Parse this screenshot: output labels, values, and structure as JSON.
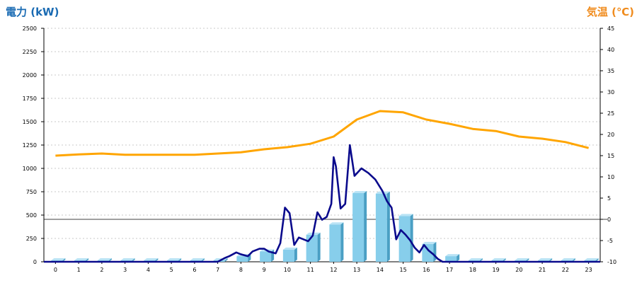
{
  "header": {
    "left_title": "電力 (kW)",
    "right_title": "気温 (℃)"
  },
  "colors": {
    "power_title": "#1a6bb3",
    "temp_title": "#f08c1e",
    "bars": "#87ceeb",
    "power_line": "#0a0a8c",
    "temp_line": "#ffa500"
  },
  "chart_data": {
    "type": "bar",
    "grid": true,
    "hours": [
      "0",
      "1",
      "2",
      "3",
      "4",
      "5",
      "6",
      "7",
      "8",
      "9",
      "10",
      "11",
      "12",
      "13",
      "14",
      "15",
      "16",
      "17",
      "18",
      "19",
      "20",
      "21",
      "22",
      "23"
    ],
    "left_axis": {
      "label": "電力 (kW)",
      "range": [
        0,
        2500
      ],
      "ticks": [
        "0",
        "250",
        "500",
        "750",
        "1000",
        "1250",
        "1500",
        "1750",
        "2000",
        "2250",
        "2500"
      ]
    },
    "right_axis": {
      "label": "気温 (℃)",
      "range": [
        -10,
        45
      ],
      "ticks": [
        "-10",
        "-5",
        "0",
        "5",
        "10",
        "15",
        "20",
        "25",
        "30",
        "35",
        "40",
        "45"
      ]
    },
    "series": [
      {
        "kind": "bar",
        "axis": "left",
        "values": [
          15,
          15,
          15,
          15,
          15,
          15,
          15,
          15,
          60,
          110,
          130,
          290,
          400,
          735,
          730,
          490,
          190,
          60,
          15,
          15,
          15,
          15,
          15,
          15
        ]
      },
      {
        "kind": "line",
        "axis": "left",
        "x": [
          0,
          7.5,
          7.8,
          8.0,
          8.3,
          8.5,
          8.8,
          9.0,
          9.3,
          9.5,
          9.7,
          10.0,
          10.2,
          10.4,
          10.6,
          10.8,
          11.0,
          11.2,
          11.4,
          11.6,
          11.8,
          12.0,
          12.2,
          12.4,
          12.5,
          12.6,
          12.8,
          13.0,
          13.2,
          13.4,
          13.7,
          14.0,
          14.3,
          14.6,
          14.8,
          15.0,
          15.2,
          15.4,
          15.6,
          15.8,
          16.0,
          16.2,
          16.4,
          16.6,
          16.8,
          17.0,
          17.2,
          24.0
        ],
        "values": [
          0,
          0,
          40,
          60,
          100,
          80,
          60,
          110,
          140,
          140,
          110,
          90,
          200,
          580,
          520,
          180,
          260,
          240,
          220,
          280,
          530,
          450,
          480,
          620,
          1120,
          1020,
          570,
          620,
          1250,
          920,
          1000,
          950,
          880,
          760,
          650,
          580,
          240,
          340,
          290,
          230,
          150,
          100,
          180,
          120,
          80,
          30,
          0,
          0
        ]
      },
      {
        "kind": "line",
        "axis": "right",
        "values": [
          15,
          15.3,
          15.5,
          15.2,
          15.2,
          15.2,
          15.2,
          15.5,
          15.8,
          16.5,
          17,
          17.8,
          19.5,
          23.5,
          25.5,
          25.2,
          23.5,
          22.5,
          21.3,
          20.8,
          19.5,
          19,
          18.2,
          16.8
        ]
      }
    ]
  }
}
